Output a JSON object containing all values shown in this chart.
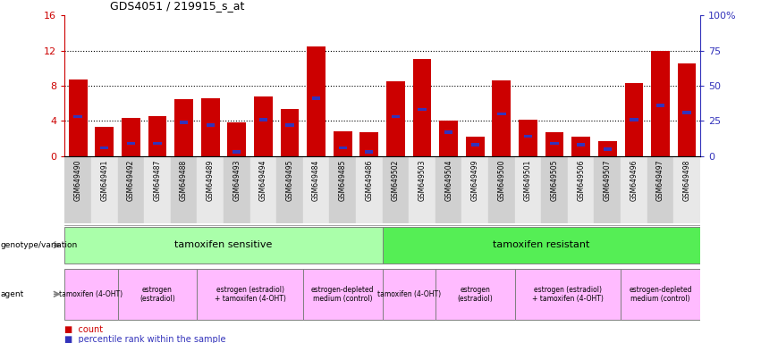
{
  "title": "GDS4051 / 219915_s_at",
  "samples": [
    "GSM649490",
    "GSM649491",
    "GSM649492",
    "GSM649487",
    "GSM649488",
    "GSM649489",
    "GSM649493",
    "GSM649494",
    "GSM649495",
    "GSM649484",
    "GSM649485",
    "GSM649486",
    "GSM649502",
    "GSM649503",
    "GSM649504",
    "GSM649499",
    "GSM649500",
    "GSM649501",
    "GSM649505",
    "GSM649506",
    "GSM649507",
    "GSM649496",
    "GSM649497",
    "GSM649498"
  ],
  "counts": [
    8.7,
    3.3,
    4.3,
    4.5,
    6.5,
    6.6,
    3.8,
    6.8,
    5.4,
    12.5,
    2.8,
    2.7,
    8.5,
    11.0,
    4.0,
    2.2,
    8.6,
    4.1,
    2.7,
    2.2,
    1.7,
    8.3,
    12.0,
    10.5
  ],
  "percentile_ranks": [
    28,
    6,
    9,
    9,
    24,
    22,
    3,
    26,
    22,
    41,
    6,
    3,
    28,
    33,
    17,
    8,
    30,
    14,
    9,
    8,
    5,
    26,
    36,
    31
  ],
  "bar_color": "#cc0000",
  "blue_color": "#3333bb",
  "ylim_left": [
    0,
    16
  ],
  "ylim_right": [
    0,
    100
  ],
  "yticks_left": [
    0,
    4,
    8,
    12,
    16
  ],
  "yticks_right": [
    0,
    25,
    50,
    75,
    100
  ],
  "ytick_labels_left": [
    "0",
    "4",
    "8",
    "12",
    "16"
  ],
  "ytick_labels_right": [
    "0",
    "25",
    "50",
    "75",
    "100%"
  ],
  "genotype_groups": [
    {
      "label": "tamoxifen sensitive",
      "start": 0,
      "end": 12,
      "color": "#aaffaa"
    },
    {
      "label": "tamoxifen resistant",
      "start": 12,
      "end": 24,
      "color": "#55ee55"
    }
  ],
  "agent_groups": [
    {
      "label": "tamoxifen (4-OHT)",
      "start": 0,
      "end": 2,
      "color": "#ffbbff"
    },
    {
      "label": "estrogen\n(estradiol)",
      "start": 2,
      "end": 5,
      "color": "#ffbbff"
    },
    {
      "label": "estrogen (estradiol)\n+ tamoxifen (4-OHT)",
      "start": 5,
      "end": 9,
      "color": "#ffbbff"
    },
    {
      "label": "estrogen-depleted\nmedium (control)",
      "start": 9,
      "end": 12,
      "color": "#ffbbff"
    },
    {
      "label": "tamoxifen (4-OHT)",
      "start": 12,
      "end": 14,
      "color": "#ffbbff"
    },
    {
      "label": "estrogen\n(estradiol)",
      "start": 14,
      "end": 17,
      "color": "#ffbbff"
    },
    {
      "label": "estrogen (estradiol)\n+ tamoxifen (4-OHT)",
      "start": 17,
      "end": 21,
      "color": "#ffbbff"
    },
    {
      "label": "estrogen-depleted\nmedium (control)",
      "start": 21,
      "end": 24,
      "color": "#ffbbff"
    }
  ]
}
